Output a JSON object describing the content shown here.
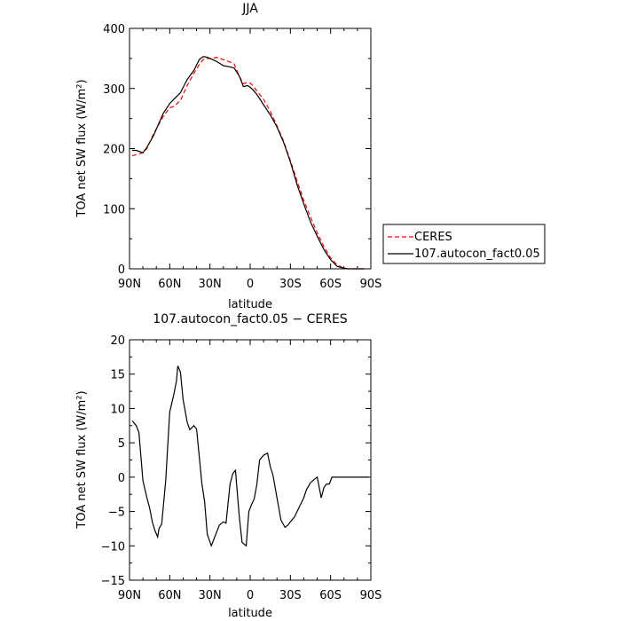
{
  "chart_data": [
    {
      "type": "line",
      "title": "JJA",
      "xlabel": "latitude",
      "ylabel": "TOA net SW flux (W/m²)",
      "xlim": [
        90,
        -90
      ],
      "ylim": [
        0,
        400
      ],
      "x_ticks": [
        90,
        60,
        30,
        0,
        -30,
        -60,
        -90
      ],
      "x_tick_labels": [
        "90N",
        "60N",
        "30N",
        "0",
        "30S",
        "60S",
        "90S"
      ],
      "y_ticks": [
        0,
        100,
        200,
        300,
        400
      ],
      "y_tick_labels": [
        "0",
        "100",
        "200",
        "300",
        "400"
      ],
      "legend_position": "right",
      "series": [
        {
          "name": "CERES",
          "color": "#ff0000",
          "dash": "dashed",
          "x": [
            88,
            85,
            80,
            77,
            72,
            65,
            60,
            57,
            52,
            47,
            42,
            38,
            35,
            32,
            28,
            25,
            20,
            15,
            12,
            8,
            5,
            2,
            0,
            -2,
            -5,
            -10,
            -15,
            -20,
            -25,
            -30,
            -35,
            -40,
            -45,
            -50,
            -55,
            -60,
            -65,
            -70,
            -73,
            -77,
            -80,
            -85
          ],
          "y": [
            188,
            190,
            193,
            200,
            225,
            253,
            268,
            270,
            280,
            305,
            325,
            340,
            348,
            350,
            350,
            352,
            348,
            344,
            341,
            320,
            308,
            310,
            309,
            305,
            296,
            282,
            262,
            238,
            212,
            180,
            146,
            114,
            86,
            60,
            37,
            18,
            6,
            1,
            0,
            0,
            0,
            0
          ]
        },
        {
          "name": "107.autocon_fact0.05",
          "color": "#000000",
          "dash": "solid",
          "x": [
            88,
            85,
            80,
            77,
            72,
            65,
            60,
            57,
            52,
            47,
            42,
            38,
            35,
            32,
            28,
            25,
            20,
            15,
            12,
            8,
            5,
            2,
            0,
            -2,
            -5,
            -10,
            -15,
            -20,
            -25,
            -30,
            -35,
            -40,
            -45,
            -50,
            -55,
            -60,
            -65,
            -70,
            -73,
            -77,
            -80,
            -85
          ],
          "y": [
            197,
            197,
            193,
            202,
            222,
            258,
            275,
            282,
            293,
            315,
            330,
            348,
            353,
            352,
            348,
            345,
            338,
            336,
            334,
            320,
            303,
            305,
            302,
            298,
            290,
            273,
            256,
            236,
            210,
            178,
            140,
            108,
            78,
            54,
            32,
            15,
            4,
            1,
            0,
            0,
            0,
            0
          ]
        }
      ]
    },
    {
      "type": "line",
      "title": "107.autocon_fact0.05 − CERES",
      "xlabel": "latitude",
      "ylabel": "TOA net SW flux (W/m²)",
      "xlim": [
        90,
        -90
      ],
      "ylim": [
        -15,
        20
      ],
      "x_ticks": [
        90,
        60,
        30,
        0,
        -30,
        -60,
        -90
      ],
      "x_tick_labels": [
        "90N",
        "60N",
        "30N",
        "0",
        "30S",
        "60S",
        "90S"
      ],
      "y_ticks": [
        -15,
        -10,
        -5,
        0,
        5,
        10,
        15,
        20
      ],
      "y_tick_labels": [
        "−15",
        "−10",
        "−5",
        "0",
        "5",
        "10",
        "15",
        "20"
      ],
      "series": [
        {
          "color": "#000000",
          "x": [
            88,
            85,
            83,
            80,
            77,
            75,
            73,
            71,
            69,
            68,
            66,
            63,
            60,
            57,
            55,
            54,
            52,
            50,
            47,
            45,
            42,
            40,
            38,
            36,
            34,
            32,
            29,
            27,
            25,
            23,
            20,
            18,
            15,
            13,
            11,
            8,
            6,
            3,
            1,
            -1,
            -3,
            -5,
            -7,
            -10,
            -13,
            -15,
            -17,
            -20,
            -23,
            -26,
            -28,
            -30,
            -33,
            -35,
            -37,
            -40,
            -42,
            -45,
            -48,
            -50,
            -53,
            -55,
            -57,
            -59,
            -61,
            -63,
            -64,
            -66,
            -68,
            -70,
            -73,
            -76,
            -80,
            -85,
            -88
          ],
          "y": [
            8.2,
            7.5,
            6.5,
            -0.5,
            -3,
            -4.5,
            -6.5,
            -7.8,
            -8.7,
            -7.5,
            -6.8,
            -0.5,
            9.5,
            12.0,
            14.0,
            16.2,
            15.3,
            11.3,
            8.0,
            6.9,
            7.5,
            7.0,
            3.0,
            -1.0,
            -3.5,
            -8.3,
            -10.0,
            -9.0,
            -8.0,
            -7.0,
            -6.5,
            -6.7,
            -1.0,
            0.5,
            1.0,
            -6.0,
            -9.5,
            -10.0,
            -5.0,
            -4.0,
            -3.2,
            -1.0,
            2.5,
            3.2,
            3.5,
            1.5,
            0.3,
            -3.0,
            -6.3,
            -7.3,
            -7.0,
            -6.5,
            -5.8,
            -5.0,
            -4.2,
            -3.0,
            -1.8,
            -0.8,
            -0.3,
            0,
            -3.0,
            -1.5,
            -1.0,
            -1.0,
            0,
            0,
            0,
            0,
            0,
            0,
            0,
            0,
            0,
            0,
            0
          ]
        }
      ]
    }
  ]
}
